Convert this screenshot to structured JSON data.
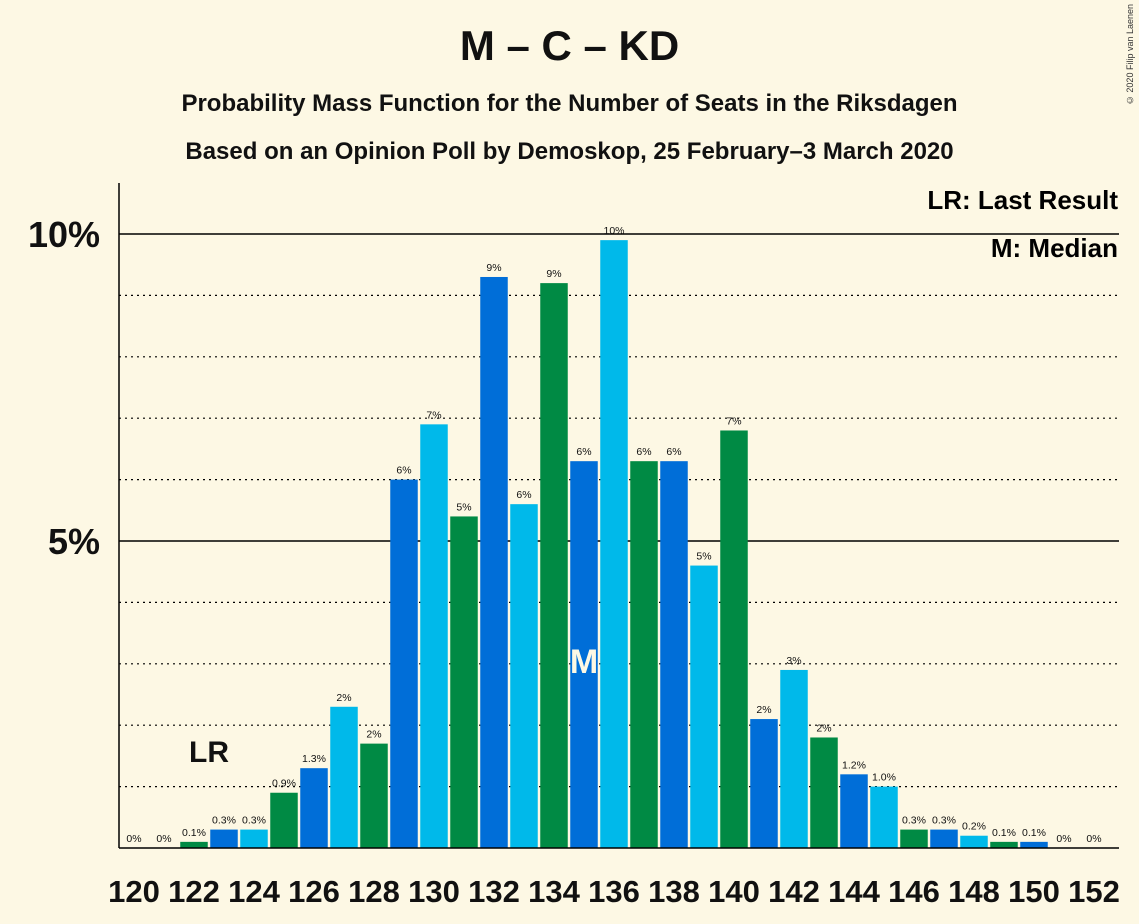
{
  "header": {
    "title": "M – C – KD",
    "subtitle1": "Probability Mass Function for the Number of Seats in the Riksdagen",
    "subtitle2": "Based on an Opinion Poll by Demoskop, 25 February–3 March 2020",
    "copyright": "© 2020 Filip van Laenen"
  },
  "legend": {
    "lr": "LR: Last Result",
    "median": "M: Median"
  },
  "chart_data": {
    "type": "bar",
    "title": "M – C – KD",
    "x": [
      120,
      121,
      122,
      123,
      124,
      125,
      126,
      127,
      128,
      129,
      130,
      131,
      132,
      133,
      134,
      135,
      136,
      137,
      138,
      139,
      140,
      141,
      142,
      143,
      144,
      145,
      146,
      147,
      148,
      149,
      150,
      151,
      152
    ],
    "values": [
      0,
      0,
      0.1,
      0.3,
      0.3,
      0.9,
      1.3,
      2.3,
      1.7,
      6.0,
      6.9,
      5.4,
      9.3,
      5.6,
      9.2,
      6.3,
      9.9,
      6.3,
      6.3,
      4.6,
      6.8,
      2.1,
      2.9,
      1.8,
      1.2,
      1.0,
      0.3,
      0.3,
      0.2,
      0.1,
      0.1,
      0,
      0
    ],
    "labels": [
      "0%",
      "0%",
      "0.1%",
      "0.3%",
      "0.3%",
      "0.9%",
      "1.3%",
      "2%",
      "2%",
      "6%",
      "7%",
      "5%",
      "9%",
      "6%",
      "9%",
      "6%",
      "10%",
      "6%",
      "6%",
      "5%",
      "7%",
      "2%",
      "3%",
      "2%",
      "1.2%",
      "1.0%",
      "0.3%",
      "0.3%",
      "0.2%",
      "0.1%",
      "0.1%",
      "0%",
      "0%"
    ],
    "x_tick_labels": [
      "120",
      "122",
      "124",
      "126",
      "128",
      "130",
      "132",
      "134",
      "136",
      "138",
      "140",
      "142",
      "144",
      "146",
      "148",
      "150",
      "152"
    ],
    "y_tick_labels": [
      "5%",
      "10%"
    ],
    "y_ticks": [
      5,
      10
    ],
    "ylim": [
      0,
      10.8
    ],
    "last_result_seat": 122,
    "last_result_label": "LR",
    "median_seat": 135,
    "median_label": "M",
    "colors": {
      "dark_blue": "#006ed8",
      "light_blue": "#00b9ea",
      "green": "#008a44",
      "background": "#fdf8e4"
    },
    "color_cycle": [
      "dark_blue",
      "light_blue",
      "green"
    ]
  }
}
